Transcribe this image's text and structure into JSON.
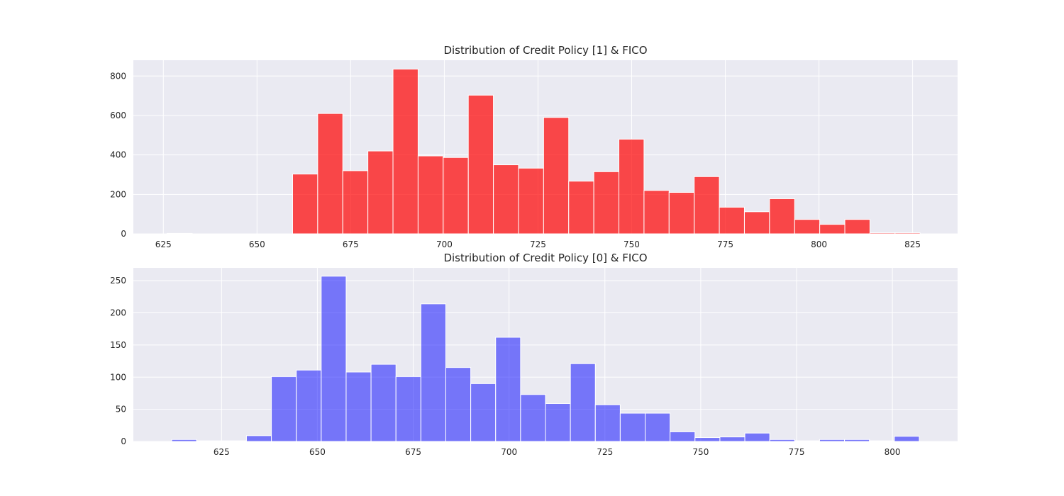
{
  "chart_data": [
    {
      "type": "bar",
      "title": "Distribution of Credit Policy [1] & FICO",
      "xlabel": "",
      "ylabel": "",
      "color": "#ff0000",
      "opacity": 0.7,
      "xlim": [
        617,
        837
      ],
      "ylim": [
        0,
        880
      ],
      "xticks": [
        625,
        650,
        675,
        700,
        725,
        750,
        775,
        800,
        825
      ],
      "yticks": [
        0,
        200,
        400,
        600,
        800
      ],
      "grid": true,
      "bin_edges": [
        626,
        632.7,
        639.4,
        646.1,
        652.8,
        659.5,
        666.2,
        672.9,
        679.6,
        686.3,
        693.0,
        699.7,
        706.4,
        713.1,
        719.8,
        726.5,
        733.2,
        739.9,
        746.6,
        753.3,
        760.0,
        766.7,
        773.4,
        780.1,
        786.8,
        793.5,
        800.2,
        806.9,
        813.6,
        820.3,
        827.0
      ],
      "values": [
        2,
        0,
        0,
        0,
        0,
        303,
        610,
        320,
        420,
        835,
        395,
        387,
        703,
        350,
        333,
        590,
        267,
        315,
        480,
        220,
        210,
        290,
        135,
        112,
        178,
        73,
        48,
        73,
        5,
        5
      ]
    },
    {
      "type": "bar",
      "title": "Distribution of Credit Policy [0] & FICO",
      "xlabel": "",
      "ylabel": "",
      "color": "#0000ff",
      "opacity": 0.5,
      "xlim": [
        602,
        817
      ],
      "ylim": [
        0,
        270
      ],
      "xticks": [
        625,
        650,
        675,
        700,
        725,
        750,
        775,
        800
      ],
      "yticks": [
        0,
        50,
        100,
        150,
        200,
        250
      ],
      "grid": true,
      "bin_edges": [
        612,
        618.5,
        625.0,
        631.5,
        638.0,
        644.5,
        651.0,
        657.5,
        664.0,
        670.5,
        677.0,
        683.5,
        690.0,
        696.5,
        703.0,
        709.5,
        716.0,
        722.5,
        729.0,
        735.5,
        742.0,
        748.5,
        755.0,
        761.5,
        768.0,
        774.5,
        781.0,
        787.5,
        794.0,
        800.5,
        807.0
      ],
      "values": [
        3,
        1,
        1,
        9,
        101,
        111,
        257,
        108,
        120,
        101,
        214,
        115,
        90,
        162,
        73,
        59,
        121,
        57,
        44,
        44,
        15,
        6,
        7,
        13,
        3,
        1,
        3,
        3,
        1,
        8
      ]
    }
  ]
}
